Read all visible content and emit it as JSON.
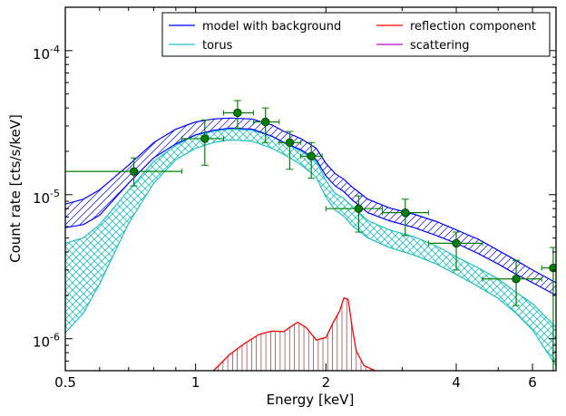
{
  "chart_data": {
    "type": "line",
    "xlabel": "Energy [keV]",
    "ylabel": "Count rate [cts/s/keV]",
    "x_scale": "log",
    "y_scale": "log",
    "xlim": [
      0.5,
      6.8
    ],
    "ylim": [
      6e-07,
      0.0002
    ],
    "x_ticks": [
      {
        "value": 0.5,
        "label": "0.5"
      },
      {
        "value": 1,
        "label": "1"
      },
      {
        "value": 2,
        "label": "2"
      },
      {
        "value": 4,
        "label": "4"
      },
      {
        "value": 6,
        "label": "6"
      }
    ],
    "y_ticks": [
      {
        "value": 1e-06,
        "base": "10",
        "exp": "-6"
      },
      {
        "value": 1e-05,
        "base": "10",
        "exp": "-5"
      },
      {
        "value": 0.0001,
        "base": "10",
        "exp": "-4"
      }
    ],
    "legend_position": "top-right",
    "legend_entries": [
      {
        "label": "model with background",
        "color": "#0000ff"
      },
      {
        "label": "reflection component",
        "color": "#ff0000"
      },
      {
        "label": "torus",
        "color": "#20c0c0"
      },
      {
        "label": "scattering",
        "color": "#c000c0"
      }
    ],
    "series": [
      {
        "name": "model with background",
        "color": "#0000ff",
        "x": [
          0.5,
          0.55,
          0.6,
          0.7,
          0.8,
          0.9,
          1.0,
          1.1,
          1.2,
          1.35,
          1.5,
          1.6,
          1.75,
          1.9,
          2.0,
          2.1,
          2.2,
          2.3,
          2.5,
          2.8,
          3.2,
          3.6,
          4.0,
          4.5,
          5.0,
          5.5,
          6.0,
          6.8
        ],
        "lower": [
          5.9e-06,
          6.2e-06,
          7.2e-06,
          1.2e-05,
          1.8e-05,
          2.25e-05,
          2.6e-05,
          2.8e-05,
          2.9e-05,
          2.85e-05,
          2.55e-05,
          2.3e-05,
          2.05e-05,
          1.75e-05,
          1.35e-05,
          1.15e-05,
          1.05e-05,
          9.2e-06,
          7.5e-06,
          6.6e-06,
          5.9e-06,
          5.2e-06,
          4.6e-06,
          3.9e-06,
          3.3e-06,
          2.8e-06,
          2.45e-06,
          2e-06
        ],
        "upper": [
          8.6e-06,
          9.3e-06,
          1.08e-05,
          1.6e-05,
          2.3e-05,
          2.85e-05,
          3.2e-05,
          3.35e-05,
          3.4e-05,
          3.35e-05,
          3.05e-05,
          2.75e-05,
          2.45e-05,
          2.1e-05,
          1.65e-05,
          1.4e-05,
          1.28e-05,
          1.13e-05,
          9.3e-06,
          8.1e-06,
          7.3e-06,
          6.5e-06,
          5.7e-06,
          4.9e-06,
          4.1e-06,
          3.5e-06,
          3e-06,
          2.45e-06
        ]
      },
      {
        "name": "torus",
        "color": "#20c0c0",
        "x": [
          0.5,
          0.55,
          0.6,
          0.7,
          0.8,
          0.9,
          1.0,
          1.1,
          1.2,
          1.35,
          1.5,
          1.6,
          1.75,
          1.9,
          2.0,
          2.1,
          2.2,
          2.3,
          2.5,
          2.8,
          3.2,
          3.6,
          4.0,
          4.5,
          5.0,
          5.5,
          6.0,
          6.8
        ],
        "lower": [
          1.1e-06,
          1.5e-06,
          2.4e-06,
          6.3e-06,
          1.2e-05,
          1.75e-05,
          2.1e-05,
          2.3e-05,
          2.4e-05,
          2.35e-05,
          2.1e-05,
          1.9e-05,
          1.62e-05,
          1.32e-05,
          9.6e-06,
          7.8e-06,
          7.1e-06,
          6.1e-06,
          5e-06,
          4.3e-06,
          3.8e-06,
          3.3e-06,
          2.8e-06,
          2.3e-06,
          1.9e-06,
          1.5e-06,
          1.15e-06,
          6.5e-07
        ],
        "upper": [
          4.6e-06,
          5e-06,
          6.2e-06,
          1.07e-05,
          1.7e-05,
          2.2e-05,
          2.6e-05,
          2.75e-05,
          2.85e-05,
          2.8e-05,
          2.55e-05,
          2.3e-05,
          2e-05,
          1.7e-05,
          1.25e-05,
          1.02e-05,
          9.4e-06,
          8.3e-06,
          6.6e-06,
          5.7e-06,
          5.1e-06,
          4.4e-06,
          3.7e-06,
          3.1e-06,
          2.6e-06,
          2.1e-06,
          1.75e-06,
          1.2e-06
        ]
      },
      {
        "name": "reflection component",
        "color": "#ff0000",
        "x": [
          1.1,
          1.2,
          1.3,
          1.4,
          1.5,
          1.6,
          1.65,
          1.72,
          1.8,
          1.9,
          2.0,
          2.08,
          2.15,
          2.2,
          2.25,
          2.3,
          2.35,
          2.45,
          2.6
        ],
        "y": [
          6e-07,
          7.8e-07,
          9.3e-07,
          1.07e-06,
          1.13e-06,
          1.12e-06,
          1.2e-06,
          1.3e-06,
          1.2e-06,
          9.8e-07,
          1.02e-06,
          1.3e-06,
          1.55e-06,
          1.92e-06,
          1.88e-06,
          1.2e-06,
          8.2e-07,
          6.5e-07,
          6e-07
        ]
      },
      {
        "name": "scattering",
        "color": "#c000c0",
        "x": [],
        "y": []
      },
      {
        "name": "data",
        "color": "#008000",
        "points": [
          {
            "x": 0.72,
            "y": 1.45e-05,
            "xlo": 0.5,
            "xhi": 0.93,
            "ylo": 1.15e-05,
            "yhi": 1.8e-05
          },
          {
            "x": 1.05,
            "y": 2.45e-05,
            "xlo": 0.93,
            "xhi": 1.16,
            "ylo": 1.6e-05,
            "yhi": 3.3e-05
          },
          {
            "x": 1.25,
            "y": 3.7e-05,
            "xlo": 1.16,
            "xhi": 1.36,
            "ylo": 2.9e-05,
            "yhi": 4.5e-05
          },
          {
            "x": 1.45,
            "y": 3.2e-05,
            "xlo": 1.36,
            "xhi": 1.56,
            "ylo": 2.3e-05,
            "yhi": 4e-05
          },
          {
            "x": 1.65,
            "y": 2.3e-05,
            "xlo": 1.56,
            "xhi": 1.75,
            "ylo": 1.5e-05,
            "yhi": 2.75e-05
          },
          {
            "x": 1.85,
            "y": 1.85e-05,
            "xlo": 1.75,
            "xhi": 1.96,
            "ylo": 1.3e-05,
            "yhi": 2.3e-05
          },
          {
            "x": 2.38,
            "y": 8e-06,
            "xlo": 2.0,
            "xhi": 2.7,
            "ylo": 5.5e-06,
            "yhi": 9.8e-06
          },
          {
            "x": 3.05,
            "y": 7.5e-06,
            "xlo": 2.7,
            "xhi": 3.45,
            "ylo": 5.2e-06,
            "yhi": 9.3e-06
          },
          {
            "x": 4.0,
            "y": 4.6e-06,
            "xlo": 3.45,
            "xhi": 4.6,
            "ylo": 3e-06,
            "yhi": 5.5e-06
          },
          {
            "x": 5.5,
            "y": 2.6e-06,
            "xlo": 4.6,
            "xhi": 6.3,
            "ylo": 1.7e-06,
            "yhi": 3.5e-06
          },
          {
            "x": 6.7,
            "y": 3.1e-06,
            "xlo": 6.3,
            "xhi": 6.8,
            "ylo": 6e-07,
            "yhi": 4.3e-06
          }
        ]
      }
    ]
  }
}
